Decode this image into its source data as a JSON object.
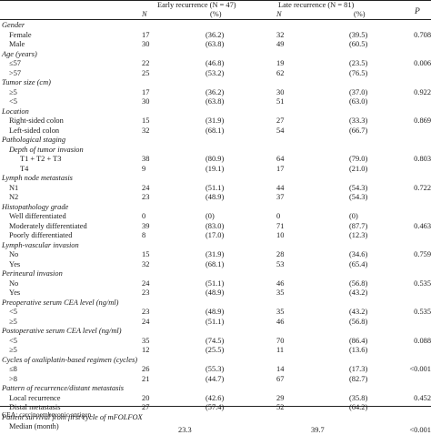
{
  "header": {
    "early_group": "Early recurrence (N = 47)",
    "late_group": "Late recurrence (N = 81)",
    "p_label": "P",
    "n_label": "N",
    "pct_label": "(%)"
  },
  "rows": [
    {
      "kind": "section",
      "label": "Gender"
    },
    {
      "kind": "item",
      "label": "Female",
      "en": "17",
      "ep": "(36.2)",
      "ln": "32",
      "lp": "(39.5)",
      "p": "0.708"
    },
    {
      "kind": "item",
      "label": "Male",
      "en": "30",
      "ep": "(63.8)",
      "ln": "49",
      "lp": "(60.5)",
      "p": ""
    },
    {
      "kind": "section",
      "label": "Age (years)"
    },
    {
      "kind": "item",
      "label": "≤57",
      "en": "22",
      "ep": "(46.8)",
      "ln": "19",
      "lp": "(23.5)",
      "p": "0.006"
    },
    {
      "kind": "item",
      "label": ">57",
      "en": "25",
      "ep": "(53.2)",
      "ln": "62",
      "lp": "(76.5)",
      "p": ""
    },
    {
      "kind": "section",
      "label": "Tumor size (cm)"
    },
    {
      "kind": "item",
      "label": "≥5",
      "en": "17",
      "ep": "(36.2)",
      "ln": "30",
      "lp": "(37.0)",
      "p": "0.922"
    },
    {
      "kind": "item",
      "label": "<5",
      "en": "30",
      "ep": "(63.8)",
      "ln": "51",
      "lp": "(63.0)",
      "p": ""
    },
    {
      "kind": "section",
      "label": "Location"
    },
    {
      "kind": "item",
      "label": "Right-sided colon",
      "en": "15",
      "ep": "(31.9)",
      "ln": "27",
      "lp": "(33.3)",
      "p": "0.869"
    },
    {
      "kind": "item",
      "label": "Left-sided colon",
      "en": "32",
      "ep": "(68.1)",
      "ln": "54",
      "lp": "(66.7)",
      "p": ""
    },
    {
      "kind": "section",
      "label": "Pathological staging"
    },
    {
      "kind": "subsection",
      "label": "Depth of tumor invasion"
    },
    {
      "kind": "item2",
      "label": "T1 + T2 + T3",
      "en": "38",
      "ep": "(80.9)",
      "ln": "64",
      "lp": "(79.0)",
      "p": "0.803"
    },
    {
      "kind": "item2",
      "label": "T4",
      "en": "9",
      "ep": "(19.1)",
      "ln": "17",
      "lp": "(21.0)",
      "p": ""
    },
    {
      "kind": "section",
      "label": "Lymph node metastasis"
    },
    {
      "kind": "item",
      "label": "N1",
      "en": "24",
      "ep": "(51.1)",
      "ln": "44",
      "lp": "(54.3)",
      "p": "0.722"
    },
    {
      "kind": "item",
      "label": "N2",
      "en": "23",
      "ep": "(48.9)",
      "ln": "37",
      "lp": "(54.3)",
      "p": ""
    },
    {
      "kind": "section",
      "label": "Histopathology grade"
    },
    {
      "kind": "item",
      "label": "Well differentiated",
      "en": "0",
      "ep": "(0)",
      "ln": "0",
      "lp": "(0)",
      "p": ""
    },
    {
      "kind": "item",
      "label": "Moderately differentiated",
      "en": "39",
      "ep": "(83.0)",
      "ln": "71",
      "lp": "(87.7)",
      "p": "0.463"
    },
    {
      "kind": "item",
      "label": "Poorly differentiated",
      "en": "8",
      "ep": "(17.0)",
      "ln": "10",
      "lp": "(12.3)",
      "p": ""
    },
    {
      "kind": "section",
      "label": "Lymph-vascular invasion"
    },
    {
      "kind": "item",
      "label": "No",
      "en": "15",
      "ep": "(31.9)",
      "ln": "28",
      "lp": "(34.6)",
      "p": "0.759"
    },
    {
      "kind": "item",
      "label": "Yes",
      "en": "32",
      "ep": "(68.1)",
      "ln": "53",
      "lp": "(65.4)",
      "p": ""
    },
    {
      "kind": "section",
      "label": "Perineural invasion"
    },
    {
      "kind": "item",
      "label": "No",
      "en": "24",
      "ep": "(51.1)",
      "ln": "46",
      "lp": "(56.8)",
      "p": "0.535"
    },
    {
      "kind": "item",
      "label": "Yes",
      "en": "23",
      "ep": "(48.9)",
      "ln": "35",
      "lp": "(43.2)",
      "p": ""
    },
    {
      "kind": "section",
      "label": "Preoperative serum CEA level (ng/ml)"
    },
    {
      "kind": "item",
      "label": "<5",
      "en": "23",
      "ep": "(48.9)",
      "ln": "35",
      "lp": "(43.2)",
      "p": "0.535"
    },
    {
      "kind": "item",
      "label": "≥5",
      "en": "24",
      "ep": "(51.1)",
      "ln": "46",
      "lp": "(56.8)",
      "p": ""
    },
    {
      "kind": "section",
      "label": "Postoperative serum CEA level (ng/ml)"
    },
    {
      "kind": "item",
      "label": "<5",
      "en": "35",
      "ep": "(74.5)",
      "ln": "70",
      "lp": "(86.4)",
      "p": "0.088"
    },
    {
      "kind": "item",
      "label": "≥5",
      "en": "12",
      "ep": "(25.5)",
      "ln": "11",
      "lp": "(13.6)",
      "p": ""
    },
    {
      "kind": "section",
      "label": "Cycles of oxaliplatin-based regimen (cycles)"
    },
    {
      "kind": "item",
      "label": "≤8",
      "en": "26",
      "ep": "(55.3)",
      "ln": "14",
      "lp": "(17.3)",
      "p": "<0.001"
    },
    {
      "kind": "item",
      "label": ">8",
      "en": "21",
      "ep": "(44.7)",
      "ln": "67",
      "lp": "(82.7)",
      "p": ""
    },
    {
      "kind": "section",
      "label": "Pattern of recurrence/distant metastasis"
    },
    {
      "kind": "item",
      "label": "Local recurrence",
      "en": "20",
      "ep": "(42.6)",
      "ln": "29",
      "lp": "(35.8)",
      "p": "0.452"
    },
    {
      "kind": "item",
      "label": "Distal metastasis",
      "en": "27",
      "ep": "(57.4)",
      "ln": "52",
      "lp": "(64.2)",
      "p": ""
    },
    {
      "kind": "section",
      "label": "Patient survival from first cycle of mFOLFOX"
    },
    {
      "kind": "median",
      "label": "Median (month)",
      "en": "23.3",
      "ln": "39.7",
      "p": "<0.001"
    }
  ],
  "footnote": "CEA: carcinoembryonic antigen."
}
